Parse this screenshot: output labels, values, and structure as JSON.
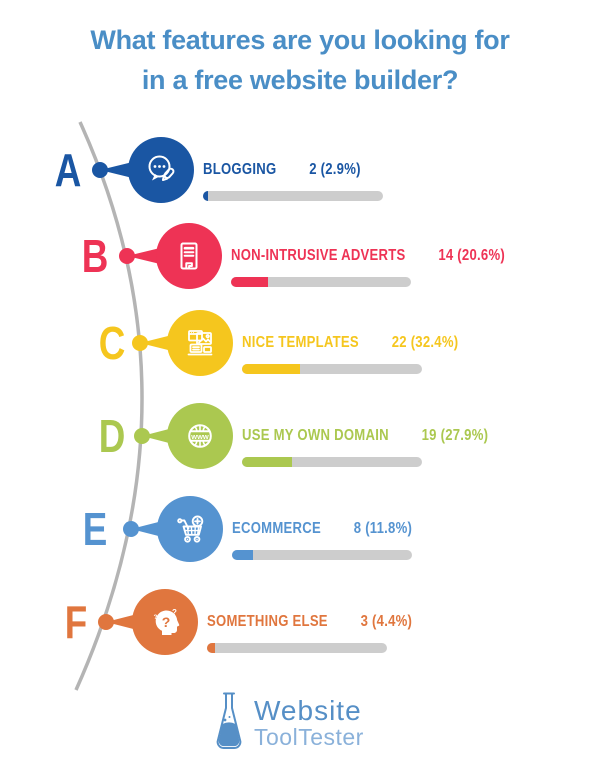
{
  "title": {
    "line1": "What features are you looking for",
    "line2": "in a free website builder?",
    "color": "#4a8ec6"
  },
  "items": [
    {
      "letter": "A",
      "label": "BLOGGING",
      "value_text": "2 (2.9%)",
      "count": 2,
      "pct": 2.9,
      "color": "#1a56a3",
      "icon": "blogging-speech-bubble-icon"
    },
    {
      "letter": "B",
      "label": "NON-INTRUSIVE ADVERTS",
      "value_text": "14 (20.6%)",
      "count": 14,
      "pct": 20.6,
      "color": "#ee3355",
      "icon": "adverts-flyer-icon"
    },
    {
      "letter": "C",
      "label": "NICE TEMPLATES",
      "value_text": "22 (32.4%)",
      "count": 22,
      "pct": 32.4,
      "color": "#f5c61e",
      "icon": "templates-windows-icon"
    },
    {
      "letter": "D",
      "label": "USE MY OWN DOMAIN",
      "value_text": "19 (27.9%)",
      "count": 19,
      "pct": 27.9,
      "color": "#abc850",
      "icon": "domain-globe-www-icon"
    },
    {
      "letter": "E",
      "label": "ECOMMERCE",
      "value_text": "8 (11.8%)",
      "count": 8,
      "pct": 11.8,
      "color": "#5593d0",
      "icon": "ecommerce-cart-icon"
    },
    {
      "letter": "F",
      "label": "SOMETHING ELSE",
      "value_text": "3 (4.4%)",
      "count": 3,
      "pct": 4.4,
      "color": "#e0763e",
      "icon": "something-else-head-question-icon"
    }
  ],
  "bar": {
    "track_color": "#cdcdcd"
  },
  "curve": {
    "color": "#b4b4b4"
  },
  "logo": {
    "name_top": "Website",
    "name_bottom": "ToolTester",
    "color_top": "#568fc6",
    "color_bottom": "#8ab1da",
    "flask_color": "#568fc6"
  },
  "chart_data": {
    "type": "bar",
    "orientation": "horizontal",
    "title": "What features are you looking for in a free website builder?",
    "categories": [
      "Blogging",
      "Non-intrusive adverts",
      "Nice templates",
      "Use my own domain",
      "Ecommerce",
      "Something else"
    ],
    "values": [
      2,
      14,
      22,
      19,
      8,
      3
    ],
    "percents": [
      2.9,
      20.6,
      32.4,
      27.9,
      11.8,
      4.4
    ],
    "value_labels": [
      "2 (2.9%)",
      "14 (20.6%)",
      "22 (32.4%)",
      "19 (27.9%)",
      "8 (11.8%)",
      "3 (4.4%)"
    ],
    "series_colors": [
      "#1a56a3",
      "#ee3355",
      "#f5c61e",
      "#abc850",
      "#5593d0",
      "#e0763e"
    ],
    "xlabel": "",
    "ylabel": "",
    "xlim_pct": [
      0,
      100
    ],
    "grid": false,
    "legend": false
  }
}
